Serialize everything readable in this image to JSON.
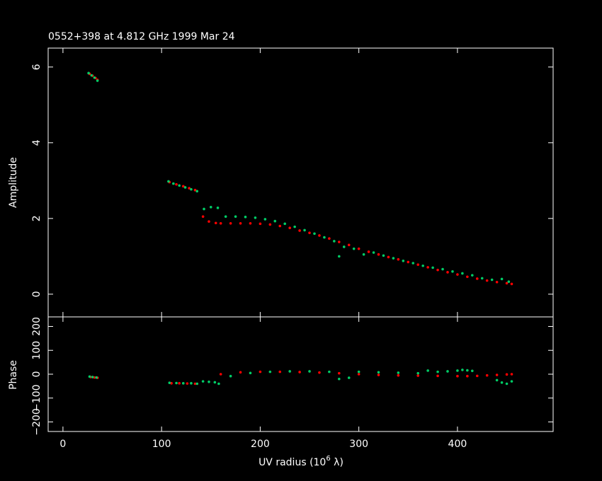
{
  "title": "0552+398 at 4.812 GHz 1999 Mar 24",
  "colors": {
    "background": "#000000",
    "axes": "#ffffff",
    "series_red": "#ff0000",
    "series_green": "#00cc66"
  },
  "chart_data": [
    {
      "type": "scatter",
      "panel": "amplitude",
      "ylabel": "Amplitude",
      "xlim": [
        -15,
        497
      ],
      "ylim": [
        -0.6,
        6.5
      ],
      "yticks": [
        0,
        2,
        4,
        6
      ],
      "ytick_labels": [
        "0",
        "2",
        "4",
        "6"
      ],
      "xticks": [
        0,
        100,
        200,
        300,
        400
      ],
      "series": [
        {
          "color": "#ff0000",
          "x": [
            27,
            30,
            33,
            35,
            108,
            115,
            122,
            128,
            134,
            142,
            148,
            155,
            160,
            170,
            180,
            190,
            200,
            210,
            220,
            230,
            240,
            250,
            260,
            270,
            280,
            290,
            300,
            310,
            320,
            330,
            340,
            350,
            360,
            370,
            380,
            390,
            400,
            410,
            420,
            430,
            440,
            450,
            455
          ],
          "y": [
            5.82,
            5.77,
            5.71,
            5.66,
            2.96,
            2.9,
            2.85,
            2.8,
            2.75,
            2.05,
            1.92,
            1.88,
            1.87,
            1.87,
            1.87,
            1.87,
            1.86,
            1.84,
            1.8,
            1.75,
            1.68,
            1.62,
            1.55,
            1.47,
            1.38,
            1.3,
            1.2,
            1.12,
            1.05,
            0.98,
            0.92,
            0.85,
            0.78,
            0.71,
            0.64,
            0.58,
            0.52,
            0.46,
            0.41,
            0.36,
            0.32,
            0.29,
            0.27
          ]
        },
        {
          "color": "#00cc66",
          "x": [
            26,
            29,
            32,
            35,
            107,
            112,
            118,
            124,
            130,
            136,
            143,
            150,
            157,
            165,
            175,
            185,
            195,
            205,
            215,
            225,
            235,
            245,
            255,
            265,
            275,
            280,
            285,
            295,
            305,
            315,
            325,
            335,
            345,
            355,
            365,
            375,
            385,
            395,
            405,
            415,
            425,
            435,
            445,
            452
          ],
          "y": [
            5.84,
            5.78,
            5.72,
            5.64,
            2.98,
            2.92,
            2.87,
            2.82,
            2.77,
            2.72,
            2.25,
            2.3,
            2.28,
            2.05,
            2.05,
            2.04,
            2.02,
            1.98,
            1.93,
            1.86,
            1.78,
            1.69,
            1.6,
            1.5,
            1.4,
            1.0,
            1.25,
            1.2,
            1.05,
            1.1,
            1.02,
            0.95,
            0.88,
            0.82,
            0.75,
            0.7,
            0.66,
            0.6,
            0.55,
            0.5,
            0.42,
            0.38,
            0.4,
            0.33
          ]
        }
      ]
    },
    {
      "type": "scatter",
      "panel": "phase",
      "xlabel": "UV radius  (10",
      "xlabel_exponent": "6",
      "xlabel_unit": " λ)",
      "ylabel": "Phase",
      "xlim": [
        -15,
        497
      ],
      "ylim": [
        -240,
        240
      ],
      "xticks": [
        0,
        100,
        200,
        300,
        400
      ],
      "xtick_labels": [
        "0",
        "100",
        "200",
        "300",
        "400"
      ],
      "yticks": [
        -200,
        -100,
        0,
        100,
        200
      ],
      "ytick_labels": [
        "−200",
        "−100",
        "0",
        "100",
        "200"
      ],
      "series": [
        {
          "color": "#ff0000",
          "x": [
            28,
            32,
            35,
            110,
            118,
            126,
            134,
            160,
            180,
            200,
            220,
            240,
            260,
            280,
            300,
            320,
            340,
            360,
            380,
            400,
            410,
            420,
            430,
            440,
            450,
            455
          ],
          "y": [
            -12,
            -14,
            -15,
            -38,
            -38,
            -39,
            -40,
            0,
            8,
            10,
            10,
            9,
            7,
            4,
            0,
            -3,
            -5,
            -6,
            -7,
            -8,
            -8,
            -7,
            -5,
            -3,
            -1,
            0
          ],
          "size": "small"
        },
        {
          "color": "#00cc66",
          "x": [
            27,
            30,
            34,
            108,
            115,
            122,
            130,
            136,
            142,
            148,
            154,
            158,
            170,
            190,
            210,
            230,
            250,
            270,
            280,
            290,
            300,
            320,
            340,
            360,
            370,
            380,
            390,
            400,
            405,
            410,
            415,
            440,
            445,
            450,
            455
          ],
          "y": [
            -10,
            -12,
            -14,
            -36,
            -37,
            -38,
            -38,
            -40,
            -30,
            -32,
            -34,
            -40,
            -8,
            5,
            10,
            12,
            12,
            10,
            -20,
            -15,
            10,
            8,
            6,
            4,
            15,
            10,
            12,
            15,
            18,
            16,
            14,
            -25,
            -35,
            -40,
            -30
          ],
          "size": "small"
        }
      ]
    }
  ]
}
